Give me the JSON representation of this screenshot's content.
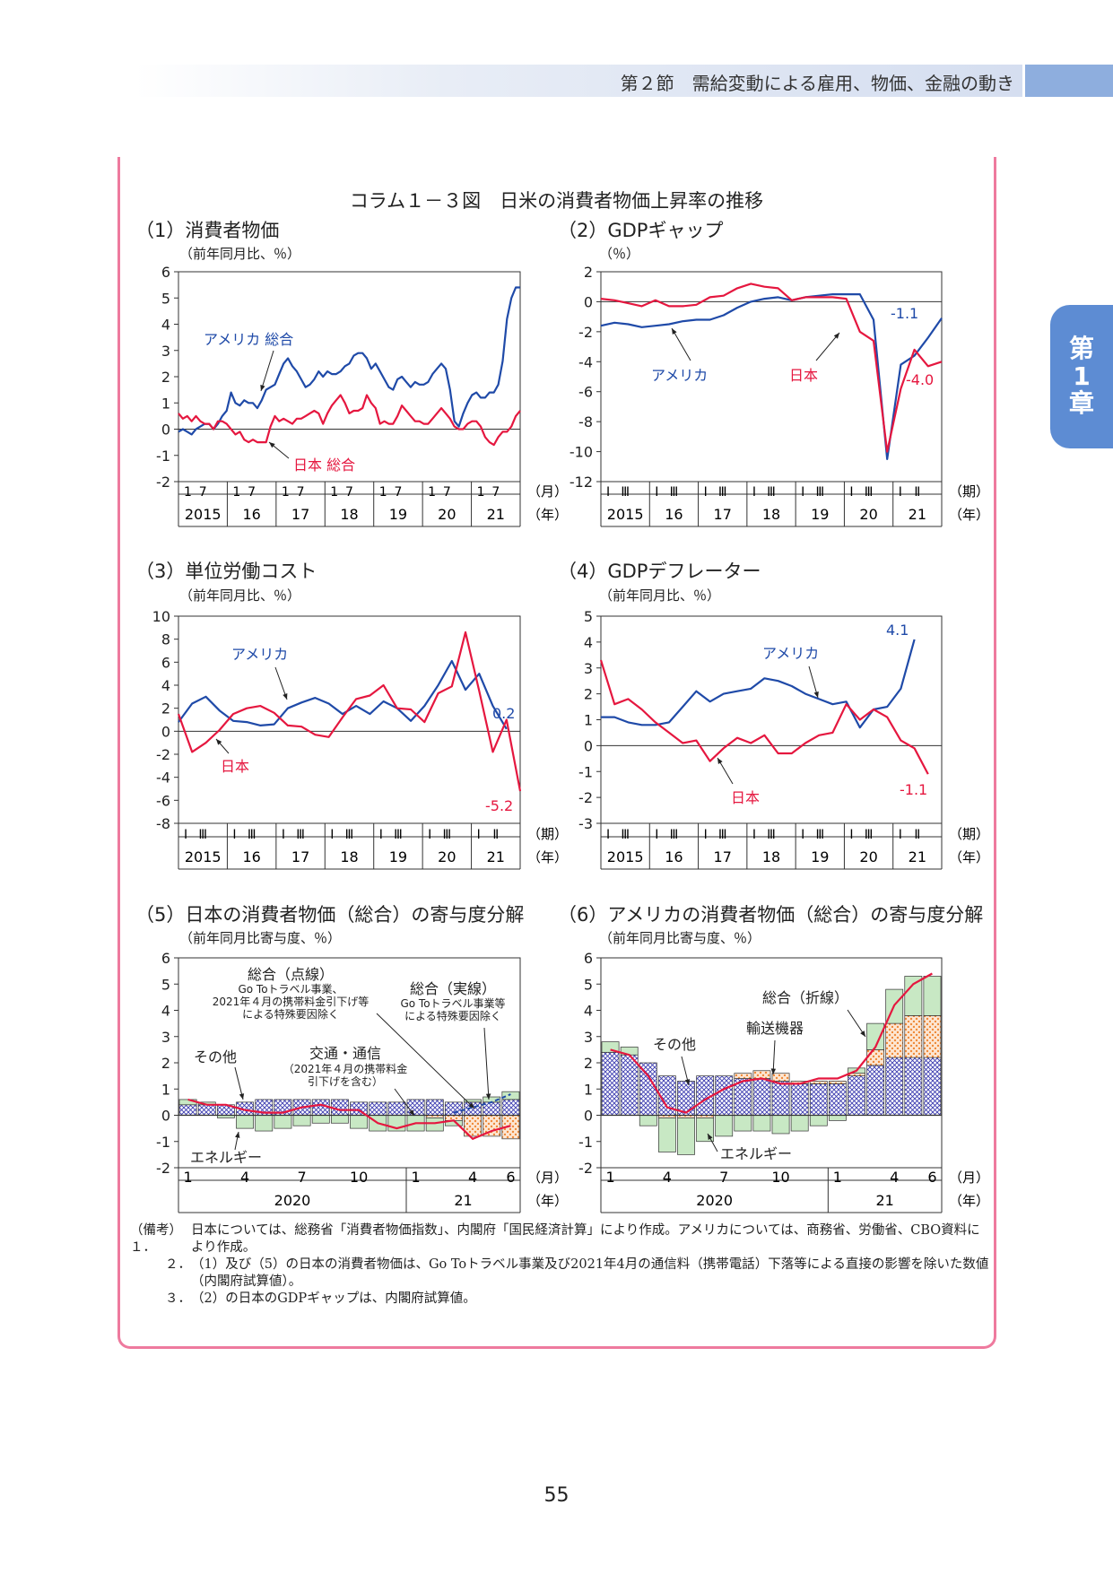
{
  "header": {
    "section": "第２節　需給変動による雇用、物価、金融の動き"
  },
  "chapter_tab": {
    "line1": "第",
    "line2": "1",
    "line3": "章"
  },
  "figure_title": "コラム１－３図　日米の消費者物価上昇率の推移",
  "page_number": "55",
  "colors": {
    "usa": "#1f4aa8",
    "japan": "#e5173f",
    "energy": "#c8e8c4",
    "telecom": "#f6b37f",
    "others": "#8e8ed6",
    "transport": "#f6b37f",
    "frame": "#ee7a9e"
  },
  "notes": {
    "label": "（備考）",
    "n1_num": "１．",
    "n1": "日本については、総務省「消費者物価指数」、内閣府「国民経済計算」により作成。アメリカについては、商務省、労働省、CBO資料により作成。",
    "n2_num": "２．",
    "n2": "（1）及び（5）の日本の消費者物価は、Go Toトラベル事業及び2021年4月の通信料（携帯電話）下落等による直接の影響を除いた数値（内閣府試算値）。",
    "n3_num": "３．",
    "n3": "（2）の日本のGDPギャップは、内閣府試算値。"
  },
  "chart_data": [
    {
      "id": "p1",
      "type": "line",
      "title": "（1）消費者物価",
      "unit": "（前年同月比、％）",
      "ylim": [
        -2,
        6
      ],
      "yticks": [
        -2,
        -1,
        0,
        1,
        2,
        3,
        4,
        5,
        6
      ],
      "xticks": [
        "1",
        "7",
        "1",
        "7",
        "1",
        "7",
        "1",
        "7",
        "1",
        "7",
        "1",
        "7",
        "1",
        "7"
      ],
      "years": [
        "2015",
        "16",
        "17",
        "18",
        "19",
        "20",
        "21"
      ],
      "xunit": "（月）",
      "yunit": "（年）",
      "series": [
        {
          "name": "アメリカ 総合",
          "label": "アメリカ 総合",
          "color": "usa",
          "values": [
            -0.1,
            0.0,
            -0.1,
            -0.2,
            0.0,
            0.1,
            0.2,
            0.2,
            0.0,
            0.2,
            0.5,
            0.7,
            1.4,
            1.0,
            0.9,
            1.1,
            1.0,
            1.0,
            0.8,
            1.1,
            1.5,
            1.6,
            1.7,
            2.1,
            2.5,
            2.7,
            2.4,
            2.2,
            1.9,
            1.6,
            1.7,
            1.9,
            2.2,
            2.0,
            2.2,
            2.1,
            2.1,
            2.2,
            2.4,
            2.5,
            2.8,
            2.9,
            2.9,
            2.7,
            2.3,
            2.5,
            2.2,
            1.9,
            1.6,
            1.5,
            1.9,
            2.0,
            1.8,
            1.6,
            1.8,
            1.7,
            1.7,
            1.8,
            2.1,
            2.3,
            2.5,
            2.3,
            1.5,
            0.3,
            0.1,
            0.6,
            1.0,
            1.3,
            1.4,
            1.2,
            1.2,
            1.4,
            1.4,
            1.7,
            2.6,
            4.2,
            5.0,
            5.4,
            5.4
          ]
        },
        {
          "name": "日本 総合",
          "label": "日本 総合",
          "color": "japan",
          "values": [
            0.6,
            0.4,
            0.5,
            0.3,
            0.5,
            0.3,
            0.2,
            0.2,
            0.0,
            0.3,
            0.3,
            0.2,
            0.0,
            -0.2,
            -0.1,
            -0.4,
            -0.5,
            -0.4,
            -0.5,
            -0.5,
            -0.5,
            0.1,
            0.5,
            0.3,
            0.4,
            0.3,
            0.2,
            0.4,
            0.4,
            0.5,
            0.6,
            0.7,
            0.6,
            0.2,
            0.6,
            0.9,
            1.1,
            1.3,
            1.0,
            0.6,
            0.7,
            0.7,
            0.8,
            1.3,
            1.0,
            0.8,
            0.2,
            0.3,
            0.2,
            0.2,
            0.5,
            0.9,
            0.7,
            0.5,
            0.3,
            0.3,
            0.2,
            0.2,
            0.4,
            0.6,
            0.8,
            0.6,
            0.4,
            0.1,
            0.0,
            0.0,
            0.2,
            0.3,
            0.3,
            0.1,
            -0.3,
            -0.5,
            -0.6,
            -0.3,
            -0.1,
            -0.1,
            0.1,
            0.5,
            0.7
          ]
        }
      ]
    },
    {
      "id": "p2",
      "type": "line",
      "title": "（2）GDPギャップ",
      "unit": "（％）",
      "ylim": [
        -12,
        2
      ],
      "yticks": [
        -12,
        -10,
        -8,
        -6,
        -4,
        -2,
        0,
        2
      ],
      "xticks": [
        "Ⅰ",
        "Ⅲ",
        "Ⅰ",
        "Ⅲ",
        "Ⅰ",
        "Ⅲ",
        "Ⅰ",
        "Ⅲ",
        "Ⅰ",
        "Ⅲ",
        "Ⅰ",
        "Ⅲ",
        "Ⅰ",
        "Ⅱ"
      ],
      "years": [
        "2015",
        "16",
        "17",
        "18",
        "19",
        "20",
        "21"
      ],
      "xunit": "（期）",
      "yunit": "（年）",
      "end_labels": [
        "-1.1",
        "-4.0"
      ],
      "series": [
        {
          "name": "アメリカ",
          "label": "アメリカ",
          "color": "usa",
          "values": [
            -1.6,
            -1.4,
            -1.5,
            -1.7,
            -1.6,
            -1.5,
            -1.3,
            -1.2,
            -1.2,
            -0.9,
            -0.4,
            0.0,
            0.2,
            0.3,
            0.1,
            0.3,
            0.4,
            0.5,
            0.5,
            0.5,
            -1.2,
            -10.5,
            -4.2,
            -3.6,
            -2.4,
            -1.1
          ]
        },
        {
          "name": "日本",
          "label": "日本",
          "color": "japan",
          "values": [
            0.2,
            0.1,
            -0.1,
            -0.3,
            0.1,
            -0.3,
            -0.3,
            -0.2,
            0.3,
            0.4,
            0.9,
            1.2,
            1.0,
            0.9,
            0.1,
            0.3,
            0.3,
            0.3,
            0.2,
            -2.0,
            -2.6,
            -10.0,
            -5.8,
            -3.2,
            -4.3,
            -4.0
          ]
        }
      ]
    },
    {
      "id": "p3",
      "type": "line",
      "title": "（3）単位労働コスト",
      "unit": "（前年同月比、％）",
      "ylim": [
        -8,
        10
      ],
      "yticks": [
        -8,
        -6,
        -4,
        -2,
        0,
        2,
        4,
        6,
        8,
        10
      ],
      "xticks": [
        "Ⅰ",
        "Ⅲ",
        "Ⅰ",
        "Ⅲ",
        "Ⅰ",
        "Ⅲ",
        "Ⅰ",
        "Ⅲ",
        "Ⅰ",
        "Ⅲ",
        "Ⅰ",
        "Ⅲ",
        "Ⅰ",
        "Ⅱ"
      ],
      "years": [
        "2015",
        "16",
        "17",
        "18",
        "19",
        "20",
        "21"
      ],
      "xunit": "（期）",
      "yunit": "（年）",
      "end_labels": [
        "0.2",
        "-5.2"
      ],
      "series": [
        {
          "name": "アメリカ",
          "label": "アメリカ",
          "color": "usa",
          "values": [
            0.8,
            2.4,
            3.0,
            1.8,
            0.9,
            0.8,
            0.5,
            0.6,
            2.0,
            2.5,
            2.9,
            2.4,
            1.5,
            2.2,
            1.5,
            2.6,
            2.0,
            0.9,
            2.2,
            4.0,
            6.1,
            3.6,
            5.0,
            2.2,
            0.2
          ]
        },
        {
          "name": "日本",
          "label": "日本",
          "color": "japan",
          "values": [
            1.5,
            -1.8,
            -1.0,
            0.1,
            1.5,
            2.0,
            2.2,
            1.6,
            0.5,
            0.4,
            -0.3,
            -0.5,
            1.2,
            2.8,
            3.1,
            4.0,
            2.0,
            1.9,
            0.8,
            3.3,
            3.9,
            8.6,
            3.5,
            -1.8,
            1.0,
            -5.2
          ]
        }
      ]
    },
    {
      "id": "p4",
      "type": "line",
      "title": "（4）GDPデフレーター",
      "unit": "（前年同月比、％）",
      "ylim": [
        -3,
        5
      ],
      "yticks": [
        -3,
        -2,
        -1,
        0,
        1,
        2,
        3,
        4,
        5
      ],
      "xticks": [
        "Ⅰ",
        "Ⅲ",
        "Ⅰ",
        "Ⅲ",
        "Ⅰ",
        "Ⅲ",
        "Ⅰ",
        "Ⅲ",
        "Ⅰ",
        "Ⅲ",
        "Ⅰ",
        "Ⅲ",
        "Ⅰ",
        "Ⅱ"
      ],
      "years": [
        "2015",
        "16",
        "17",
        "18",
        "19",
        "20",
        "21"
      ],
      "xunit": "（期）",
      "yunit": "（年）",
      "end_labels": [
        "4.1",
        "-1.1"
      ],
      "series": [
        {
          "name": "アメリカ",
          "label": "アメリカ",
          "color": "usa",
          "values": [
            1.1,
            1.1,
            0.9,
            0.8,
            0.8,
            0.9,
            1.5,
            2.1,
            1.7,
            2.0,
            2.1,
            2.2,
            2.6,
            2.5,
            2.3,
            2.0,
            1.8,
            1.6,
            1.7,
            0.7,
            1.4,
            1.5,
            2.2,
            4.1
          ]
        },
        {
          "name": "日本",
          "label": "日本",
          "color": "japan",
          "values": [
            3.3,
            1.6,
            1.8,
            1.4,
            0.9,
            0.5,
            0.1,
            0.2,
            -0.6,
            -0.1,
            0.3,
            0.1,
            0.4,
            -0.3,
            -0.3,
            0.1,
            0.4,
            0.5,
            1.6,
            1.0,
            1.4,
            1.1,
            0.2,
            -0.1,
            -1.1
          ]
        }
      ]
    },
    {
      "id": "p5",
      "type": "bar",
      "title": "（5）日本の消費者物価（総合）の寄与度分解",
      "unit": "（前年同月比寄与度、％）",
      "ylim": [
        -2,
        6
      ],
      "yticks": [
        -2,
        -1,
        0,
        1,
        2,
        3,
        4,
        5,
        6
      ],
      "xticks": [
        "1",
        "4",
        "7",
        "10",
        "1",
        "4",
        "6"
      ],
      "years": [
        "2020",
        "21"
      ],
      "xunit": "（月）",
      "yunit": "（年）",
      "categories": [
        "2020/1",
        "2020/2",
        "2020/3",
        "2020/4",
        "2020/5",
        "2020/6",
        "2020/7",
        "2020/8",
        "2020/9",
        "2020/10",
        "2020/11",
        "2020/12",
        "2021/1",
        "2021/2",
        "2021/3",
        "2021/4",
        "2021/5",
        "2021/6"
      ],
      "series": [
        {
          "name": "その他",
          "color": "others",
          "values": [
            0.4,
            0.4,
            0.4,
            0.5,
            0.6,
            0.6,
            0.6,
            0.6,
            0.6,
            0.5,
            0.5,
            0.5,
            0.6,
            0.6,
            0.5,
            0.5,
            0.5,
            0.6
          ]
        },
        {
          "name": "交通・通信（2021年４月の携帯料金引下げを含む）",
          "color": "telecom",
          "values": [
            0.0,
            0.0,
            0.0,
            0.0,
            0.0,
            0.0,
            0.0,
            0.0,
            0.0,
            0.0,
            0.0,
            0.0,
            0.0,
            -0.1,
            -0.2,
            -0.8,
            -0.8,
            -0.9
          ]
        },
        {
          "name": "エネルギー",
          "color": "energy",
          "values": [
            0.2,
            0.1,
            -0.1,
            -0.5,
            -0.6,
            -0.5,
            -0.4,
            -0.3,
            -0.3,
            -0.5,
            -0.6,
            -0.6,
            -0.6,
            -0.5,
            -0.2,
            0.1,
            0.2,
            0.3
          ]
        }
      ],
      "total_solid": {
        "name": "総合（実線）",
        "label": "Go Toトラベル事業等による特殊要因除く",
        "values": [
          0.6,
          0.4,
          0.4,
          0.2,
          0.1,
          0.1,
          0.3,
          0.4,
          0.2,
          0.2,
          -0.3,
          -0.5,
          -0.3,
          -0.3,
          -0.2,
          -0.9,
          -0.6,
          -0.4
        ]
      },
      "total_dashed": {
        "name": "総合（点線）",
        "label": "Go Toトラベル事業、2021年４月の携帯料金引下げ等による特殊要因除く",
        "values": [
          null,
          null,
          null,
          null,
          null,
          null,
          null,
          null,
          null,
          null,
          null,
          null,
          null,
          null,
          0.1,
          0.3,
          0.5,
          0.8
        ]
      },
      "annotations": {
        "dashed": "総合（点線）",
        "dashed_l1": "Go Toトラベル事業、",
        "dashed_l2": "2021年４月の携帯料金引下げ等",
        "dashed_l3": "による特殊要因除く",
        "solid": "総合（実線）",
        "solid_l1": "Go Toトラベル事業等",
        "solid_l2": "による特殊要因除く",
        "telecom": "交通・通信",
        "telecom_l1": "（2021年４月の携帯料金",
        "telecom_l2": "引下げを含む）",
        "others": "その他",
        "energy": "エネルギー"
      }
    },
    {
      "id": "p6",
      "type": "bar",
      "title": "（6）アメリカの消費者物価（総合）の寄与度分解",
      "unit": "（前年同月比寄与度、％）",
      "ylim": [
        -2,
        6
      ],
      "yticks": [
        -2,
        -1,
        0,
        1,
        2,
        3,
        4,
        5,
        6
      ],
      "xticks": [
        "1",
        "4",
        "7",
        "10",
        "1",
        "4",
        "6"
      ],
      "years": [
        "2020",
        "21"
      ],
      "xunit": "（月）",
      "yunit": "（年）",
      "categories": [
        "2020/1",
        "2020/2",
        "2020/3",
        "2020/4",
        "2020/5",
        "2020/6",
        "2020/7",
        "2020/8",
        "2020/9",
        "2020/10",
        "2020/11",
        "2020/12",
        "2021/1",
        "2021/2",
        "2021/3",
        "2021/4",
        "2021/5",
        "2021/6"
      ],
      "series": [
        {
          "name": "その他",
          "color": "others",
          "values": [
            2.4,
            2.3,
            2.0,
            1.5,
            1.3,
            1.5,
            1.5,
            1.4,
            1.4,
            1.3,
            1.2,
            1.2,
            1.2,
            1.5,
            1.9,
            2.2,
            2.2,
            2.2
          ]
        },
        {
          "name": "輸送機器",
          "color": "transport",
          "values": [
            0.0,
            0.0,
            0.0,
            -0.1,
            -0.1,
            -0.1,
            0.0,
            0.2,
            0.3,
            0.3,
            0.1,
            0.1,
            0.1,
            0.1,
            0.6,
            1.3,
            1.6,
            1.6
          ]
        },
        {
          "name": "エネルギー",
          "color": "energy",
          "values": [
            0.4,
            0.3,
            -0.4,
            -1.3,
            -1.4,
            -0.9,
            -0.8,
            -0.6,
            -0.6,
            -0.7,
            -0.6,
            -0.4,
            -0.2,
            0.2,
            1.0,
            1.3,
            1.5,
            1.5
          ]
        }
      ],
      "total": {
        "name": "総合（折線）",
        "values": [
          2.5,
          2.3,
          1.5,
          0.3,
          0.1,
          0.6,
          1.0,
          1.3,
          1.4,
          1.2,
          1.2,
          1.4,
          1.4,
          1.7,
          2.6,
          4.2,
          5.0,
          5.4
        ]
      },
      "annotations": {
        "total": "総合（折線）",
        "transport": "輸送機器",
        "others": "その他",
        "energy": "エネルギー"
      }
    }
  ]
}
